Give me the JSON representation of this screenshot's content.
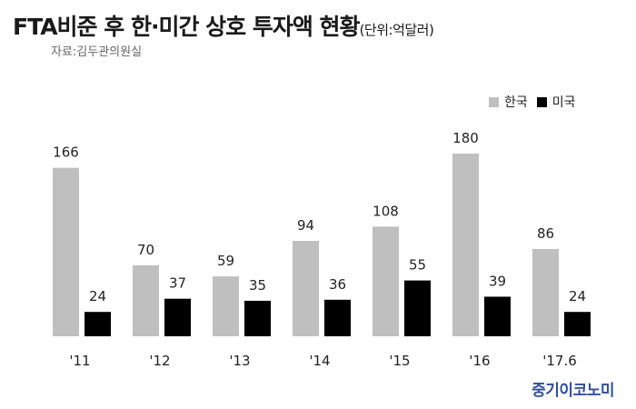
{
  "title": "FTA비준 후 한·미간 상호 투자액 현황",
  "unit": "(단위:억달러)",
  "source": "자료:김두관의원실",
  "watermark": "중기이코노미",
  "colors": {
    "korea": "#bfbfbf",
    "usa": "#000000",
    "label": "#222222"
  },
  "chart_data": {
    "type": "bar",
    "categories": [
      "'11",
      "'12",
      "'13",
      "'14",
      "'15",
      "'16",
      "'17.6"
    ],
    "series": [
      {
        "name": "한국",
        "values": [
          166,
          70,
          59,
          94,
          108,
          180,
          86
        ]
      },
      {
        "name": "미국",
        "values": [
          24,
          37,
          35,
          36,
          55,
          39,
          24
        ]
      }
    ],
    "ylim": [
      0,
      180
    ],
    "grid": false,
    "legend": "top-right",
    "xlabel": "",
    "ylabel": ""
  }
}
